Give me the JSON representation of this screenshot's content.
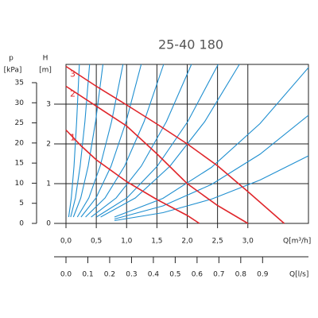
{
  "chart_data": {
    "type": "line",
    "title": "25-40 180",
    "xlabel": "Q[m³/h]",
    "ylabel": "H",
    "ylabel_unit": "[m]",
    "plabel": "p",
    "plabel_unit": "[kPa]",
    "x2label": "Q[l/s]",
    "xlim": [
      0,
      4
    ],
    "ylim": [
      0,
      4
    ],
    "plim": [
      0,
      35
    ],
    "x2lim": [
      0,
      1.11
    ],
    "xticks": [
      {
        "value": 0,
        "label": "0,0"
      },
      {
        "value": 0.5,
        "label": "0,5"
      },
      {
        "value": 1,
        "label": "1,0"
      },
      {
        "value": 1.5,
        "label": "1,5"
      },
      {
        "value": 2,
        "label": "2,0"
      },
      {
        "value": 2.5,
        "label": "2,5"
      },
      {
        "value": 3,
        "label": "3,0"
      }
    ],
    "yticks": [
      0,
      1,
      2,
      3
    ],
    "pticks": [
      0,
      5,
      10,
      15,
      20,
      25,
      30,
      35
    ],
    "x2ticks": [
      {
        "value": 0,
        "label": "0.0"
      },
      {
        "value": 0.1,
        "label": "0.1"
      },
      {
        "value": 0.2,
        "label": "0.2"
      },
      {
        "value": 0.3,
        "label": "0.3"
      },
      {
        "value": 0.4,
        "label": "0.4"
      },
      {
        "value": 0.5,
        "label": "0.5"
      },
      {
        "value": 0.6,
        "label": "0.6"
      },
      {
        "value": 0.7,
        "label": "0.7"
      },
      {
        "value": 0.8,
        "label": "0.8"
      },
      {
        "value": 0.9,
        "label": "0.9"
      }
    ],
    "grid": true,
    "series": [
      {
        "name": "1",
        "color": "#e0262b",
        "x": [
          0,
          0.25,
          0.5,
          1,
          1.5,
          2,
          2.2
        ],
        "values": [
          2.35,
          1.95,
          1.6,
          1.05,
          0.6,
          0.2,
          0
        ]
      },
      {
        "name": "2",
        "color": "#e0262b",
        "x": [
          0,
          0.5,
          1,
          1.5,
          2,
          2.5,
          3
        ],
        "values": [
          3.45,
          2.95,
          2.45,
          1.75,
          1,
          0.45,
          0
        ]
      },
      {
        "name": "3",
        "color": "#e0262b",
        "x": [
          0,
          0.5,
          1,
          1.5,
          2,
          2.5,
          3,
          3.6
        ],
        "values": [
          3.95,
          3.45,
          2.98,
          2.5,
          2,
          1.45,
          0.8,
          0
        ]
      }
    ],
    "system_curves": {
      "color": "#1f8fd0",
      "curves": [
        {
          "x": [
            0.044,
            0.088,
            0.132,
            0.176,
            0.22
          ],
          "values": [
            0.16,
            0.64,
            1.44,
            2.56,
            4
          ]
        },
        {
          "x": [
            0.078,
            0.156,
            0.234,
            0.312,
            0.39
          ],
          "values": [
            0.16,
            0.64,
            1.44,
            2.56,
            4
          ]
        },
        {
          "x": [
            0.122,
            0.244,
            0.366,
            0.488,
            0.61
          ],
          "values": [
            0.16,
            0.64,
            1.44,
            2.56,
            4
          ]
        },
        {
          "x": [
            0.188,
            0.376,
            0.564,
            0.752,
            0.94
          ],
          "values": [
            0.16,
            0.64,
            1.44,
            2.56,
            4
          ]
        },
        {
          "x": [
            0.248,
            0.496,
            0.744,
            0.992,
            1.24
          ],
          "values": [
            0.16,
            0.64,
            1.44,
            2.56,
            4
          ]
        },
        {
          "x": [
            0.322,
            0.644,
            0.966,
            1.288,
            1.61
          ],
          "values": [
            0.16,
            0.64,
            1.44,
            2.56,
            4
          ]
        },
        {
          "x": [
            0.414,
            0.828,
            1.242,
            1.656,
            2.07
          ],
          "values": [
            0.16,
            0.64,
            1.44,
            2.56,
            4
          ]
        },
        {
          "x": [
            0.502,
            1.004,
            1.506,
            2.008,
            2.51
          ],
          "values": [
            0.16,
            0.64,
            1.44,
            2.56,
            4
          ]
        },
        {
          "x": [
            0.572,
            1.144,
            1.716,
            2.288,
            2.86
          ],
          "values": [
            0.16,
            0.64,
            1.44,
            2.56,
            4
          ]
        },
        {
          "x": [
            0.8,
            1.6,
            2.4,
            3.2,
            4
          ],
          "values": [
            0.16,
            0.63,
            1.41,
            2.51,
            3.92
          ]
        },
        {
          "x": [
            0.8,
            1.6,
            2.4,
            3.2,
            4
          ],
          "values": [
            0.11,
            0.44,
            0.98,
            1.74,
            2.72
          ]
        },
        {
          "x": [
            0.8,
            1.6,
            2.4,
            3.2,
            4
          ],
          "values": [
            0.07,
            0.27,
            0.61,
            1.09,
            1.7
          ]
        }
      ]
    }
  }
}
